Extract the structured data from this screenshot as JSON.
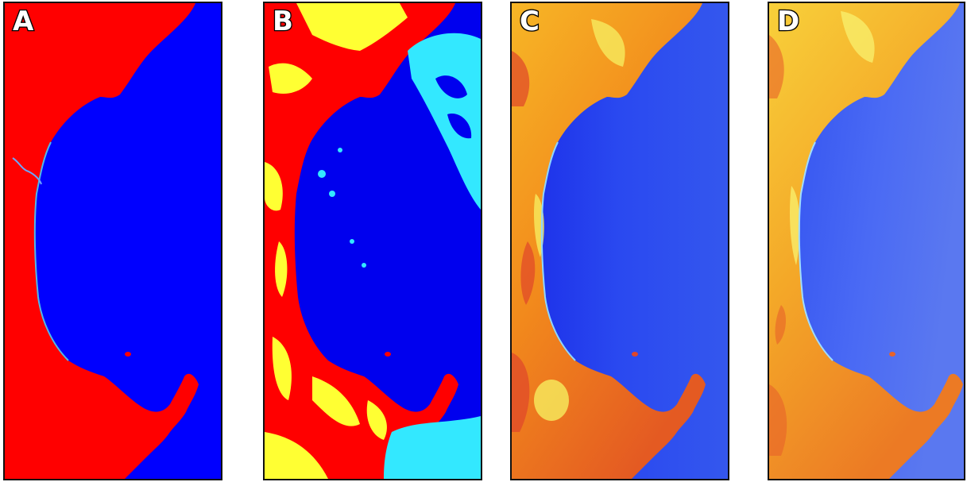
{
  "panels": [
    {
      "id": "a",
      "label": "A",
      "name": "panel-a",
      "land_color": "#ff0000",
      "water_color": "#0000ff"
    },
    {
      "id": "b",
      "label": "B",
      "name": "panel-b",
      "land_color": "#ff0000",
      "water_color": "#0000ee",
      "cloud_color": "#33e8ff",
      "highland_color": "#ffff33"
    },
    {
      "id": "c",
      "label": "C",
      "name": "panel-c",
      "land_color": "#f6a018",
      "water_color": "#1f3cf0",
      "accent_color": "#e0462a"
    },
    {
      "id": "d",
      "label": "D",
      "name": "panel-d",
      "land_color": "#f7c22a",
      "water_color": "#3b5cf2",
      "accent_color": "#e8632a"
    }
  ]
}
